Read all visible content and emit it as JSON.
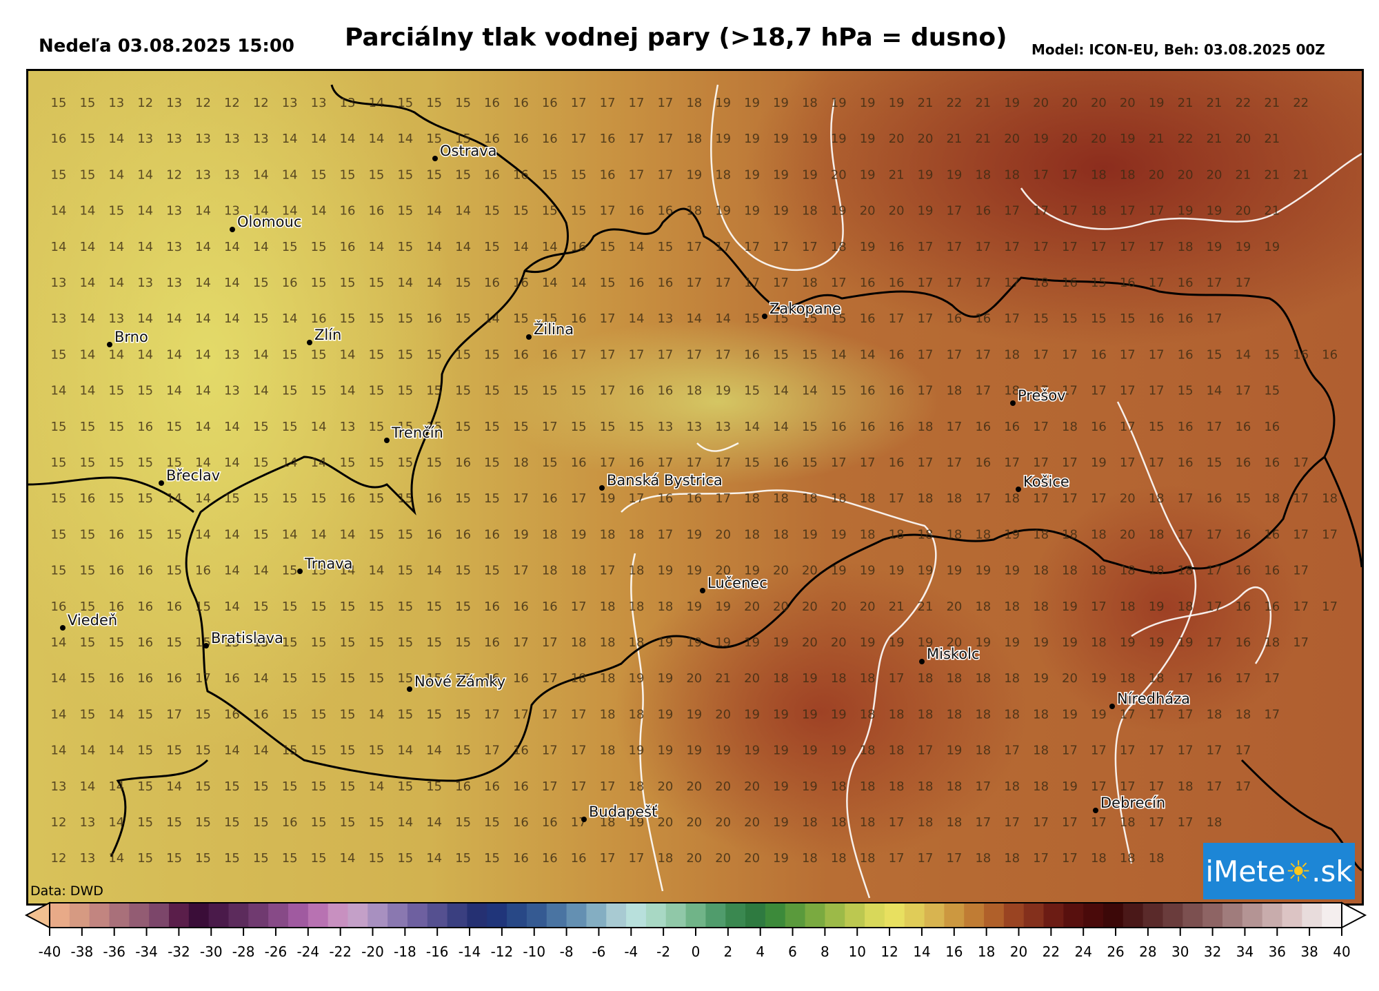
{
  "header": {
    "datetime": "Nedeľa 03.08.2025 15:00",
    "title": "Parciálny tlak vodnej pary (>18,7 hPa = dusno)",
    "model": "Model: ICON-EU, Beh: 03.08.2025 00Z"
  },
  "credit": "Data: DWD",
  "logo": {
    "text_pre": "iMete",
    "sun_glyph": "☀",
    "text_post": ".sk"
  },
  "map": {
    "threshold_hpa": 18.7,
    "cities": [
      {
        "name": "Ostrava"
      },
      {
        "name": "Olomouc"
      },
      {
        "name": "Brno"
      },
      {
        "name": "Zlín"
      },
      {
        "name": "Žilina"
      },
      {
        "name": "Zakopane"
      },
      {
        "name": "Prešov"
      },
      {
        "name": "Trenčín"
      },
      {
        "name": "Břeclav"
      },
      {
        "name": "Banská Bystrica"
      },
      {
        "name": "Košice"
      },
      {
        "name": "Trnava"
      },
      {
        "name": "Lučenec"
      },
      {
        "name": "Viedeň"
      },
      {
        "name": "Bratislava"
      },
      {
        "name": "Miskolc"
      },
      {
        "name": "Nové Zámky"
      },
      {
        "name": "Níredháza"
      },
      {
        "name": "Debrecín"
      },
      {
        "name": "Budapešť"
      }
    ],
    "grid_values": [
      [
        15,
        15,
        13,
        12,
        13,
        12,
        12,
        12,
        13,
        13,
        13,
        14,
        15,
        15,
        15,
        16,
        16,
        16,
        17,
        17,
        17,
        17,
        18,
        19,
        19,
        19,
        18,
        19,
        19,
        19,
        21,
        22,
        21,
        19,
        20,
        20,
        20,
        20,
        19,
        21,
        21,
        22,
        21,
        22
      ],
      [
        16,
        15,
        14,
        13,
        13,
        13,
        13,
        13,
        14,
        14,
        14,
        14,
        14,
        15,
        15,
        16,
        16,
        16,
        17,
        16,
        17,
        17,
        18,
        19,
        19,
        19,
        19,
        19,
        19,
        20,
        20,
        21,
        21,
        20,
        19,
        20,
        20,
        19,
        21,
        22,
        21,
        20,
        21
      ],
      [
        15,
        15,
        14,
        14,
        12,
        13,
        13,
        14,
        14,
        15,
        15,
        15,
        15,
        15,
        15,
        16,
        16,
        15,
        15,
        16,
        17,
        17,
        19,
        18,
        19,
        19,
        19,
        20,
        19,
        21,
        19,
        19,
        18,
        18,
        17,
        17,
        18,
        18,
        20,
        20,
        20,
        21,
        21,
        21
      ],
      [
        14,
        14,
        15,
        14,
        13,
        14,
        13,
        14,
        14,
        14,
        16,
        16,
        15,
        14,
        14,
        15,
        15,
        15,
        15,
        17,
        16,
        16,
        18,
        19,
        19,
        19,
        18,
        19,
        20,
        20,
        19,
        17,
        16,
        17,
        17,
        17,
        18,
        17,
        17,
        19,
        19,
        20,
        21
      ],
      [
        14,
        14,
        14,
        14,
        13,
        14,
        14,
        14,
        15,
        15,
        16,
        14,
        15,
        14,
        14,
        15,
        14,
        14,
        16,
        15,
        14,
        15,
        17,
        17,
        17,
        17,
        17,
        18,
        19,
        16,
        17,
        17,
        17,
        17,
        17,
        17,
        17,
        17,
        17,
        18,
        19,
        19,
        19
      ],
      [
        13,
        14,
        14,
        13,
        13,
        14,
        14,
        15,
        16,
        15,
        15,
        15,
        14,
        14,
        15,
        16,
        16,
        14,
        14,
        15,
        16,
        16,
        17,
        17,
        17,
        17,
        18,
        17,
        16,
        16,
        17,
        17,
        17,
        17,
        18,
        16,
        15,
        16,
        17,
        16,
        17,
        17
      ],
      [
        13,
        14,
        13,
        14,
        14,
        14,
        14,
        15,
        14,
        16,
        15,
        15,
        15,
        16,
        15,
        14,
        15,
        15,
        16,
        17,
        14,
        13,
        14,
        14,
        15,
        15,
        15,
        15,
        16,
        17,
        17,
        16,
        16,
        17,
        15,
        15,
        15,
        15,
        16,
        16,
        17
      ],
      [
        15,
        14,
        14,
        14,
        14,
        14,
        13,
        14,
        15,
        15,
        14,
        15,
        15,
        15,
        15,
        15,
        16,
        16,
        17,
        17,
        17,
        17,
        17,
        17,
        16,
        15,
        15,
        14,
        14,
        16,
        17,
        17,
        17,
        18,
        17,
        17,
        16,
        17,
        17,
        16,
        15,
        14,
        15,
        16,
        16
      ],
      [
        14,
        14,
        15,
        15,
        14,
        14,
        13,
        14,
        15,
        15,
        14,
        15,
        15,
        15,
        15,
        15,
        15,
        15,
        15,
        17,
        16,
        16,
        18,
        19,
        15,
        14,
        14,
        15,
        16,
        16,
        17,
        18,
        17,
        18,
        17,
        17,
        17,
        17,
        17,
        15,
        14,
        17,
        15
      ],
      [
        15,
        15,
        15,
        16,
        15,
        14,
        14,
        15,
        15,
        14,
        13,
        15,
        15,
        15,
        15,
        15,
        15,
        17,
        15,
        15,
        15,
        13,
        13,
        13,
        14,
        14,
        15,
        16,
        16,
        16,
        18,
        17,
        16,
        16,
        17,
        18,
        16,
        17,
        15,
        16,
        17,
        16,
        16
      ],
      [
        15,
        15,
        15,
        15,
        15,
        14,
        14,
        15,
        14,
        14,
        15,
        15,
        15,
        15,
        16,
        15,
        18,
        15,
        16,
        17,
        16,
        17,
        17,
        17,
        15,
        16,
        15,
        17,
        17,
        16,
        17,
        17,
        16,
        17,
        17,
        17,
        19,
        17,
        17,
        16,
        15,
        16,
        16,
        17
      ],
      [
        15,
        16,
        15,
        15,
        14,
        14,
        15,
        15,
        15,
        15,
        16,
        15,
        15,
        16,
        15,
        15,
        17,
        16,
        17,
        19,
        17,
        16,
        16,
        17,
        18,
        18,
        18,
        18,
        18,
        17,
        18,
        18,
        17,
        18,
        17,
        17,
        17,
        20,
        18,
        17,
        16,
        15,
        18,
        17,
        18
      ],
      [
        15,
        15,
        16,
        15,
        15,
        14,
        14,
        15,
        14,
        14,
        14,
        15,
        15,
        16,
        16,
        16,
        19,
        18,
        19,
        18,
        18,
        17,
        19,
        20,
        18,
        18,
        19,
        19,
        18,
        18,
        18,
        18,
        18,
        19,
        18,
        18,
        18,
        20,
        18,
        17,
        17,
        16,
        16,
        17,
        17
      ],
      [
        15,
        15,
        16,
        16,
        15,
        16,
        14,
        14,
        15,
        15,
        14,
        14,
        15,
        14,
        15,
        15,
        17,
        18,
        18,
        17,
        18,
        19,
        19,
        20,
        19,
        20,
        20,
        19,
        19,
        19,
        19,
        19,
        19,
        19,
        18,
        18,
        18,
        18,
        18,
        18,
        17,
        16,
        16,
        17
      ],
      [
        16,
        15,
        16,
        16,
        16,
        15,
        14,
        15,
        15,
        15,
        15,
        15,
        15,
        15,
        15,
        16,
        16,
        16,
        17,
        18,
        18,
        18,
        19,
        19,
        20,
        20,
        20,
        20,
        20,
        21,
        21,
        20,
        18,
        18,
        18,
        19,
        17,
        18,
        19,
        18,
        17,
        16,
        16,
        17,
        17
      ],
      [
        14,
        15,
        15,
        16,
        15,
        15,
        15,
        15,
        15,
        15,
        15,
        15,
        15,
        15,
        15,
        16,
        17,
        17,
        18,
        18,
        18,
        19,
        19,
        19,
        19,
        19,
        20,
        20,
        19,
        19,
        19,
        20,
        19,
        19,
        19,
        19,
        18,
        19,
        19,
        19,
        17,
        16,
        18,
        17
      ],
      [
        14,
        15,
        16,
        16,
        16,
        17,
        16,
        14,
        15,
        15,
        15,
        15,
        15,
        15,
        15,
        16,
        16,
        17,
        18,
        18,
        19,
        19,
        20,
        21,
        20,
        18,
        19,
        18,
        18,
        17,
        18,
        18,
        18,
        18,
        19,
        20,
        19,
        18,
        18,
        17,
        16,
        17,
        17
      ],
      [
        14,
        15,
        14,
        15,
        17,
        15,
        16,
        16,
        15,
        15,
        15,
        14,
        15,
        15,
        15,
        17,
        17,
        17,
        17,
        18,
        18,
        19,
        19,
        20,
        19,
        19,
        19,
        19,
        18,
        18,
        18,
        18,
        18,
        18,
        18,
        19,
        19,
        17,
        17,
        17,
        18,
        18,
        17
      ],
      [
        14,
        14,
        14,
        15,
        15,
        15,
        14,
        14,
        15,
        15,
        15,
        15,
        14,
        14,
        15,
        17,
        16,
        17,
        17,
        18,
        19,
        19,
        19,
        19,
        19,
        19,
        19,
        19,
        18,
        18,
        17,
        19,
        18,
        17,
        18,
        17,
        17,
        17,
        17,
        17,
        17,
        17
      ],
      [
        13,
        14,
        14,
        15,
        14,
        15,
        15,
        15,
        15,
        15,
        15,
        14,
        15,
        15,
        16,
        16,
        16,
        17,
        17,
        17,
        18,
        20,
        20,
        20,
        20,
        19,
        19,
        18,
        18,
        18,
        18,
        18,
        17,
        18,
        18,
        19,
        17,
        17,
        17,
        18,
        17,
        17
      ],
      [
        12,
        13,
        14,
        15,
        15,
        15,
        15,
        15,
        16,
        15,
        15,
        15,
        14,
        14,
        15,
        15,
        16,
        16,
        17,
        18,
        19,
        20,
        20,
        20,
        20,
        19,
        18,
        18,
        18,
        17,
        18,
        18,
        17,
        17,
        17,
        17,
        17,
        18,
        17,
        17,
        18
      ],
      [
        12,
        13,
        14,
        15,
        15,
        15,
        15,
        15,
        15,
        15,
        14,
        15,
        15,
        14,
        15,
        15,
        16,
        16,
        16,
        17,
        17,
        18,
        20,
        20,
        20,
        19,
        18,
        18,
        18,
        17,
        17,
        17,
        18,
        18,
        17,
        17,
        18,
        18,
        18
      ]
    ]
  },
  "colorbar": {
    "vmin": -40,
    "vmax": 40,
    "step": 2,
    "tick_labels": [
      "-40",
      "-38",
      "-36",
      "-34",
      "-32",
      "-30",
      "-28",
      "-26",
      "-24",
      "-22",
      "-20",
      "-18",
      "-16",
      "-14",
      "-12",
      "-10",
      "-8",
      "-6",
      "-4",
      "-2",
      "0",
      "2",
      "4",
      "6",
      "8",
      "10",
      "12",
      "14",
      "16",
      "18",
      "20",
      "22",
      "24",
      "26",
      "28",
      "30",
      "32",
      "34",
      "36",
      "38",
      "40"
    ],
    "colors": [
      "#e8aa88",
      "#d69a82",
      "#c28580",
      "#a9707a",
      "#935c73",
      "#7c466a",
      "#5a1e4a",
      "#3a0d38",
      "#4a1a4a",
      "#5c2b5c",
      "#703a70",
      "#874a87",
      "#a05aa0",
      "#b872b2",
      "#c890c0",
      "#c4a0c8",
      "#a890c0",
      "#8a78b0",
      "#6e60a0",
      "#555090",
      "#3a3f80",
      "#253072",
      "#20357a",
      "#284886",
      "#355a92",
      "#4a74a2",
      "#6490b2",
      "#84aec2",
      "#a8cad2",
      "#b8e0dc",
      "#a8d8c4",
      "#90c8a8",
      "#70b488",
      "#509c6c",
      "#3a8850",
      "#2e7a40",
      "#3c8a3a",
      "#5a9a3c",
      "#7aaa40",
      "#9cba48",
      "#bcc850",
      "#d8d85a",
      "#e8e060",
      "#e0cc58",
      "#d8b450",
      "#cc9840",
      "#c07c34",
      "#b0602a",
      "#9a4422",
      "#84301c",
      "#6c1c14",
      "#58100e",
      "#4a0a0a",
      "#3c0808",
      "#4a1818",
      "#5a2a2a",
      "#6a3c3c",
      "#7c5050",
      "#8e6464",
      "#a07c7c",
      "#b49494",
      "#c8acac",
      "#dcc4c4",
      "#e8dcdc",
      "#f4eeee"
    ]
  }
}
